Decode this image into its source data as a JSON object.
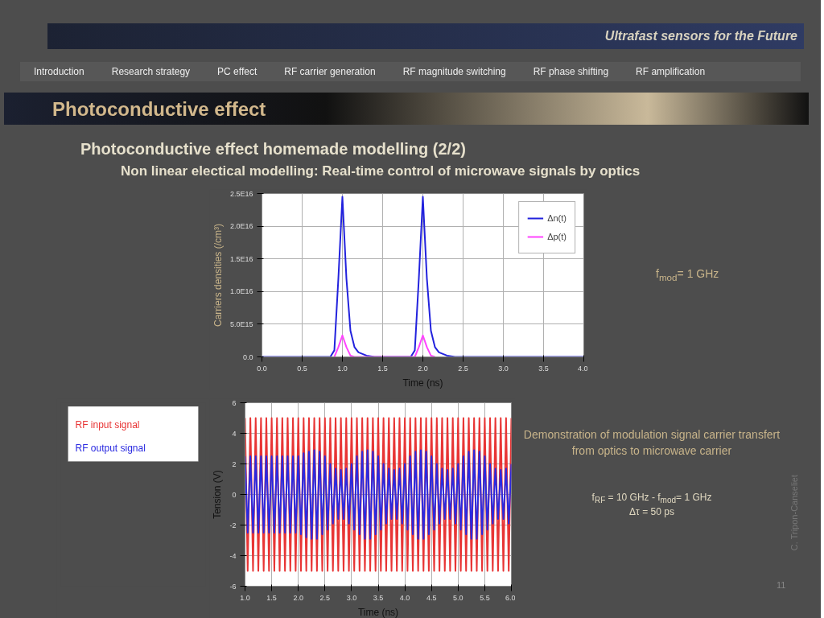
{
  "chart_data": [
    {
      "type": "line",
      "title": "Photoconductive effect homemade modelling (2/2)",
      "subtitle": "Non linear electical modelling: Real-time control of microwave signals by optics",
      "xlabel": "Time (ns)",
      "ylabel": "Carriers densities (/cm³)",
      "annotations": [
        "Ultrafast sensors for the Future",
        "Introduction",
        "Research strategy",
        "PC effect",
        "RF carrier generation",
        "RF  magnitude switching",
        "RF  phase shifting",
        "RF  amplification",
        "Photoconductive effect",
        "f$_{mod}$= 1 GHz"
      ],
      "xlim": [
        0,
        4
      ],
      "ylim": [
        0,
        2.5e+16
      ],
      "xticks": [
        {
          "value": 0,
          "label": "0.0"
        },
        {
          "value": 0.5,
          "label": "0.5"
        },
        {
          "value": 1,
          "label": "1.0"
        },
        {
          "value": 1.5,
          "label": "1.5"
        },
        {
          "value": 2,
          "label": "2.0"
        },
        {
          "value": 2.5,
          "label": "2.5"
        },
        {
          "value": 3,
          "label": "3.0"
        },
        {
          "value": 3.5,
          "label": "3.5"
        },
        {
          "value": 4,
          "label": "4.0"
        }
      ],
      "yticks": [
        {
          "value": 0,
          "label": "0.0"
        },
        {
          "value": 5000000000000000.0,
          "label": "5.0E15"
        },
        {
          "value": 1e+16,
          "label": "1.0E16"
        },
        {
          "value": 1.5e+16,
          "label": "1.5E16"
        },
        {
          "value": 2e+16,
          "label": "2.0E16"
        },
        {
          "value": 2.5e+16,
          "label": "2.5E16"
        }
      ],
      "grid": true,
      "legend": "top right",
      "marker": "none",
      "line_style": "solid",
      "series": [
        {
          "name": "Δn(t)",
          "color": "#2222dd",
          "x": [
            0,
            0.85,
            0.9,
            0.95,
            1.0,
            1.05,
            1.1,
            1.15,
            1.2,
            1.3,
            1.4,
            1.85,
            1.9,
            1.95,
            2.0,
            2.05,
            2.1,
            2.15,
            2.2,
            2.3,
            2.4,
            4.0
          ],
          "values": [
            0,
            0,
            1000000000000000.0,
            1.2e+16,
            2.45e+16,
            1.2e+16,
            4000000000000000.0,
            1500000000000000.0,
            700000000000000.0,
            200000000000000.0,
            0,
            0,
            1000000000000000.0,
            1.2e+16,
            2.45e+16,
            1.2e+16,
            4000000000000000.0,
            1500000000000000.0,
            700000000000000.0,
            200000000000000.0,
            0,
            0
          ]
        },
        {
          "name": "Δp(t)",
          "color": "#ff44ff",
          "x": [
            0.9,
            0.95,
            1.0,
            1.05,
            1.1,
            1.15,
            1.9,
            1.95,
            2.0,
            2.05,
            2.1,
            2.15
          ],
          "values": [
            0,
            1500000000000000.0,
            3300000000000000.0,
            1500000000000000.0,
            200000000000000.0,
            0,
            0,
            1500000000000000.0,
            3300000000000000.0,
            1500000000000000.0,
            200000000000000.0,
            0
          ]
        }
      ]
    },
    {
      "type": "line",
      "xlabel": "Time (ns)",
      "ylabel": "Tension (V)",
      "annotations": [
        "Demonstration of modulation signal carrier transfert from optics to microwave carrier",
        "f$_{RF}$ = 10 GHz - f$_{mod}$= 1 GHz",
        "Δτ = 50 ps",
        "C. Tripon-Canseliet",
        "11"
      ],
      "xlim": [
        1,
        6
      ],
      "ylim": [
        -6,
        6
      ],
      "xticks": [
        {
          "value": 1,
          "label": "1.0"
        },
        {
          "value": 1.5,
          "label": "1.5"
        },
        {
          "value": 2,
          "label": "2.0"
        },
        {
          "value": 2.5,
          "label": "2.5"
        },
        {
          "value": 3,
          "label": "3.0"
        },
        {
          "value": 3.5,
          "label": "3.5"
        },
        {
          "value": 4,
          "label": "4.0"
        },
        {
          "value": 4.5,
          "label": "4.5"
        },
        {
          "value": 5,
          "label": "5.0"
        },
        {
          "value": 5.5,
          "label": "5.5"
        },
        {
          "value": 6,
          "label": "6.0"
        }
      ],
      "yticks": [
        -6,
        -4,
        -2,
        0,
        2,
        4,
        6
      ],
      "grid": true,
      "legend": "left",
      "marker": "none",
      "line_style": "solid",
      "x": [
        1.0,
        1.05,
        1.1,
        1.15,
        1.2,
        1.25,
        1.3,
        1.35,
        1.4,
        1.45,
        1.5,
        1.55,
        1.6,
        1.65,
        1.7,
        1.75,
        1.8,
        1.85,
        1.9,
        1.95,
        2.0,
        2.05,
        2.1,
        2.15,
        2.2,
        2.25,
        2.3,
        2.35,
        2.4,
        2.45,
        2.5,
        2.55,
        2.6,
        2.65,
        2.7,
        2.75,
        2.8,
        2.85,
        2.9,
        2.95,
        3.0,
        3.05,
        3.1,
        3.15,
        3.2,
        3.25,
        3.3,
        3.35,
        3.4,
        3.45,
        3.5,
        3.55,
        3.6,
        3.65,
        3.7,
        3.75,
        3.8,
        3.85,
        3.9,
        3.95,
        4.0,
        4.05,
        4.1,
        4.15,
        4.2,
        4.25,
        4.3,
        4.35,
        4.4,
        4.45,
        4.5,
        4.55,
        4.6,
        4.65,
        4.7,
        4.75,
        4.8,
        4.85,
        4.9,
        4.95,
        5.0,
        5.05,
        5.1,
        5.15,
        5.2,
        5.25,
        5.3,
        5.35,
        5.4,
        5.45,
        5.5,
        5.55,
        5.6,
        5.65,
        5.7,
        5.75,
        5.8,
        5.85,
        5.9,
        5.95,
        6.0
      ],
      "series": [
        {
          "name": "RF input  signal",
          "color": "#e83535",
          "values": [
            5,
            -5,
            5,
            -5,
            5,
            -5,
            5,
            -5,
            5,
            -5,
            5,
            -5,
            5,
            -5,
            5,
            -5,
            5,
            -5,
            5,
            -5,
            5,
            -5,
            5,
            -5,
            5,
            -5,
            5,
            -5,
            5,
            -5,
            5,
            -5,
            5,
            -5,
            5,
            -5,
            5,
            -5,
            5,
            -5,
            5,
            -5,
            5,
            -5,
            5,
            -5,
            5,
            -5,
            5,
            -5,
            5,
            -5,
            5,
            -5,
            5,
            -5,
            5,
            -5,
            5,
            -5,
            5,
            -5,
            5,
            -5,
            5,
            -5,
            5,
            -5,
            5,
            -5,
            5,
            -5,
            5,
            -5,
            5,
            -5,
            5,
            -5,
            5,
            -5,
            5,
            -5,
            5,
            -5,
            5,
            -5,
            5,
            -5,
            5,
            -5,
            5,
            -5,
            5,
            -5,
            5,
            -5,
            5,
            -5,
            5,
            -5,
            5
          ]
        },
        {
          "name": "RF output  signal",
          "color": "#2a2ae0",
          "values": [
            2.5,
            -2.5,
            2.5,
            -2.5,
            2.5,
            -2.5,
            2.5,
            -2.5,
            2.5,
            -2.5,
            2.5,
            -2.5,
            2.5,
            -2.5,
            2.5,
            -2.5,
            2.5,
            -2.5,
            2.5,
            -2.5,
            2.5,
            -2.6,
            2.7,
            -2.8,
            2.8,
            -2.9,
            2.9,
            -2.9,
            2.8,
            -2.6,
            2.5,
            -2.3,
            2.0,
            -1.9,
            1.7,
            -1.6,
            1.6,
            -1.6,
            1.7,
            -1.9,
            2.0,
            -2.3,
            2.5,
            -2.6,
            2.8,
            -2.9,
            2.9,
            -2.9,
            2.8,
            -2.6,
            2.5,
            -2.3,
            2.0,
            -1.9,
            1.7,
            -1.6,
            1.6,
            -1.6,
            1.7,
            -1.9,
            2.0,
            -2.3,
            2.5,
            -2.6,
            2.8,
            -2.9,
            2.9,
            -2.9,
            2.8,
            -2.6,
            2.5,
            -2.3,
            2.0,
            -1.9,
            1.7,
            -1.6,
            1.6,
            -1.6,
            1.7,
            -1.9,
            2.0,
            -2.3,
            2.5,
            -2.6,
            2.8,
            -2.9,
            2.9,
            -2.9,
            2.8,
            -2.6,
            2.5,
            -2.3,
            2.0,
            -1.9,
            1.7,
            -1.6,
            1.6,
            -1.6,
            1.7,
            -1.9,
            2.0
          ]
        }
      ]
    }
  ]
}
